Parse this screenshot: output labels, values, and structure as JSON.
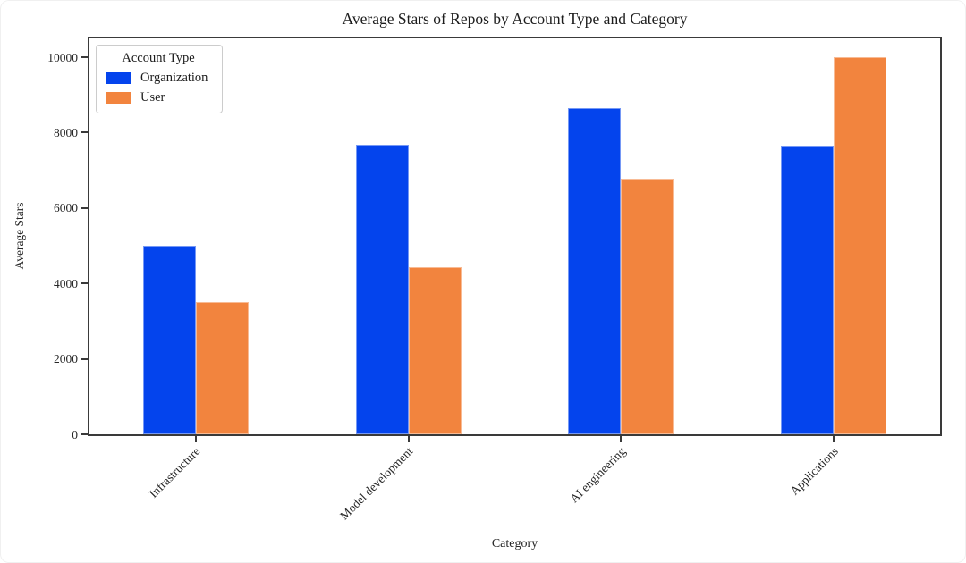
{
  "chart_data": {
    "type": "bar",
    "title": "Average Stars of Repos by Account Type and Category",
    "xlabel": "Category",
    "ylabel": "Average Stars",
    "categories": [
      "Infrastructure",
      "Model development",
      "AI engineering",
      "Applications"
    ],
    "series": [
      {
        "name": "Organization",
        "color": "#0444ed",
        "values": [
          5000,
          7680,
          8660,
          7650
        ]
      },
      {
        "name": "User",
        "color": "#f2843e",
        "values": [
          3500,
          4440,
          6790,
          10000
        ]
      }
    ],
    "legend_title": "Account Type",
    "legend_position": "upper left",
    "yticks": [
      0,
      2000,
      4000,
      6000,
      8000,
      10000
    ],
    "ylim": [
      0,
      10500
    ],
    "grid": false
  }
}
